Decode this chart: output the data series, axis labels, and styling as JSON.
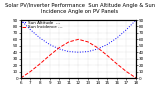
{
  "title": "Solar PV/Inverter Performance  Sun Altitude Angle & Sun Incidence Angle on PV Panels",
  "legend": [
    "Sun Altitude  ---",
    "Sun Incidence ---"
  ],
  "x_values": [
    6,
    7,
    8,
    9,
    10,
    11,
    12,
    13,
    14,
    15,
    16,
    17,
    18
  ],
  "sun_altitude": [
    0,
    10,
    22,
    35,
    47,
    56,
    60,
    56,
    47,
    35,
    22,
    10,
    0
  ],
  "sun_incidence": [
    90,
    75,
    62,
    52,
    45,
    41,
    40,
    41,
    45,
    52,
    62,
    75,
    90
  ],
  "xlim": [
    6,
    18
  ],
  "ylim": [
    0,
    90
  ],
  "yticks": [
    0,
    10,
    20,
    30,
    40,
    50,
    60,
    70,
    80,
    90
  ],
  "xticks": [
    6,
    7,
    8,
    9,
    10,
    11,
    12,
    13,
    14,
    15,
    16,
    17,
    18
  ],
  "bg_color": "#ffffff",
  "grid_color": "#aaaaaa",
  "title_fontsize": 3.8,
  "tick_fontsize": 3.0,
  "legend_fontsize": 3.0,
  "line_width": 0.7,
  "blue_color": "#0000ff",
  "red_color": "#ff0000"
}
